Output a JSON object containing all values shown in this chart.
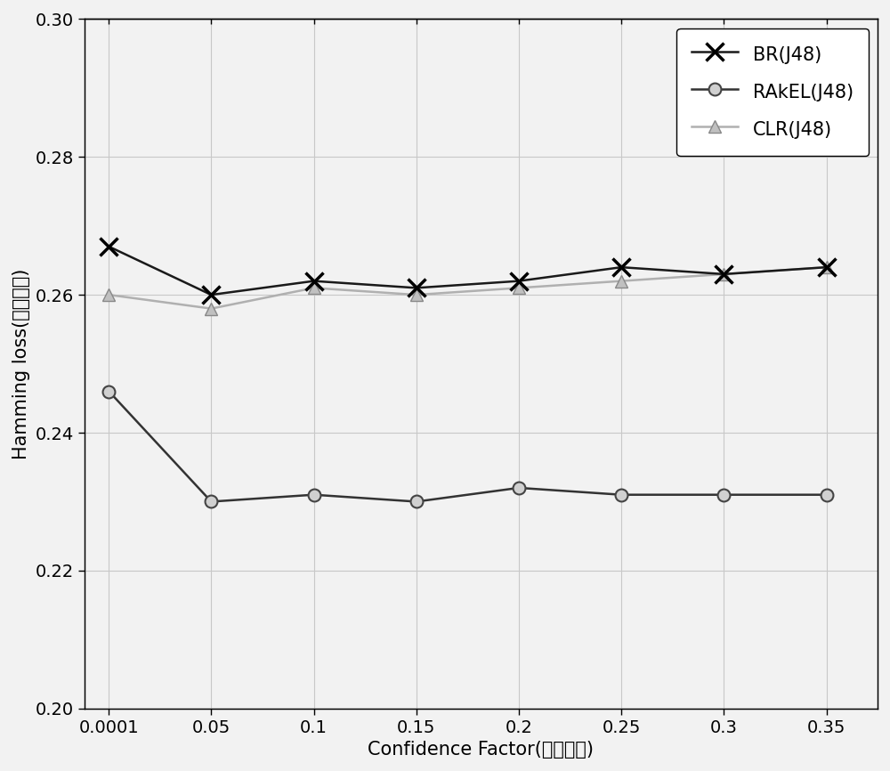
{
  "x": [
    0.0001,
    0.05,
    0.1,
    0.15,
    0.2,
    0.25,
    0.3,
    0.35
  ],
  "BR_J48": [
    0.267,
    0.26,
    0.262,
    0.261,
    0.262,
    0.264,
    0.263,
    0.264
  ],
  "RAkEL_J48": [
    0.246,
    0.23,
    0.231,
    0.23,
    0.232,
    0.231,
    0.231,
    0.231
  ],
  "CLR_J48": [
    0.26,
    0.258,
    0.261,
    0.26,
    0.261,
    0.262,
    0.263,
    0.264
  ],
  "BR_color": "#1a1a1a",
  "RAkEL_color": "#333333",
  "CLR_color": "#b0b0b0",
  "xlabel": "Confidence Factor(置信系数)",
  "ylabel": "Hamming loss(汉明损失)",
  "ylim": [
    0.2,
    0.3
  ],
  "yticks": [
    0.2,
    0.22,
    0.24,
    0.26,
    0.28,
    0.3
  ],
  "xtick_labels": [
    "0.0001",
    "0.05",
    "0.1",
    "0.15",
    "0.2",
    "0.25",
    "0.3",
    "0.35"
  ],
  "legend_labels": [
    "BR(J48)",
    "RAkEL(J48)",
    "CLR(J48)"
  ],
  "background_color": "#f2f2f2",
  "plot_bg_color": "#f2f2f2",
  "grid_color": "#c8c8c8",
  "tick_fontsize": 14,
  "label_fontsize": 15,
  "legend_fontsize": 15
}
